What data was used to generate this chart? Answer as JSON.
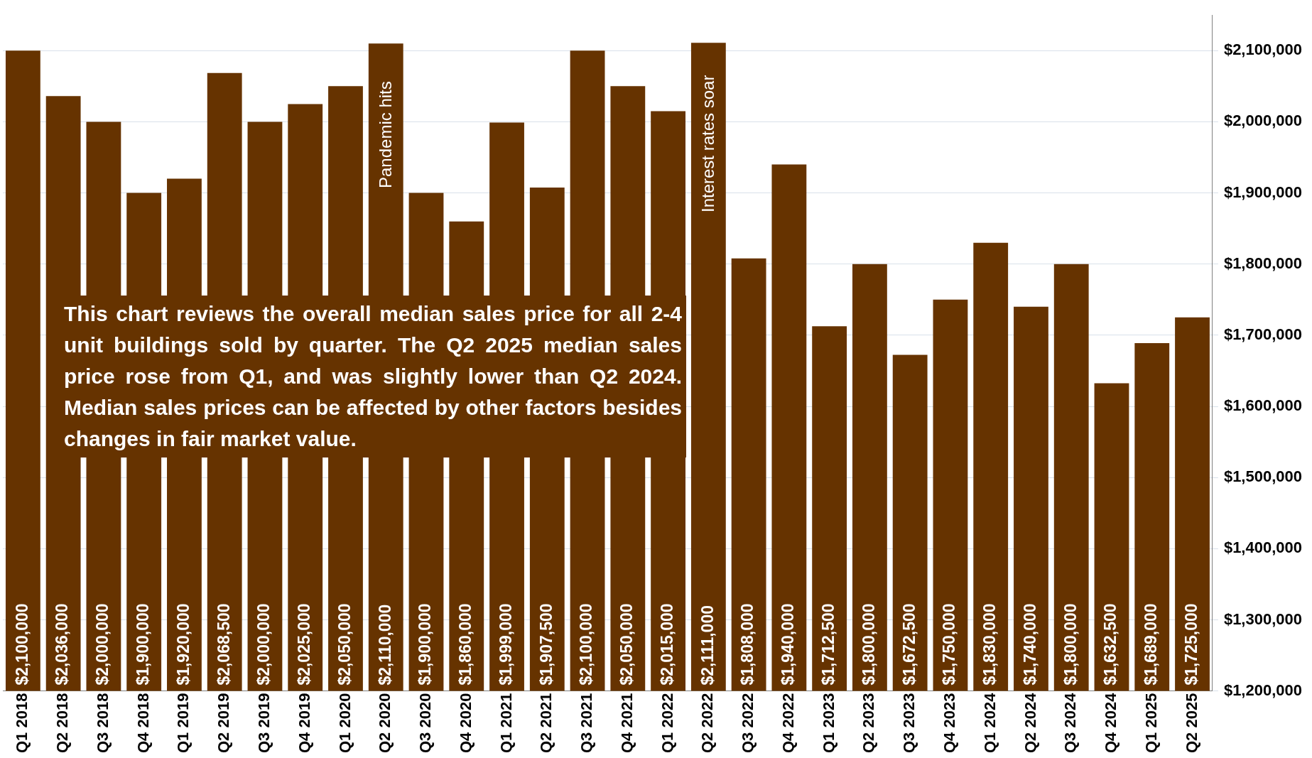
{
  "chart_data": {
    "type": "bar",
    "categories": [
      "Q1 2018",
      "Q2 2018",
      "Q3 2018",
      "Q4 2018",
      "Q1 2019",
      "Q2 2019",
      "Q3 2019",
      "Q4 2019",
      "Q1 2020",
      "Q2 2020",
      "Q3 2020",
      "Q4 2020",
      "Q1 2021",
      "Q2 2021",
      "Q3 2021",
      "Q4 2021",
      "Q1 2022",
      "Q2 2022",
      "Q3 2022",
      "Q4 2022",
      "Q1 2023",
      "Q2 2023",
      "Q3 2023",
      "Q4 2023",
      "Q1 2024",
      "Q2 2024",
      "Q3 2024",
      "Q4 2024",
      "Q1 2025",
      "Q2 2025"
    ],
    "values": [
      2100000,
      2036000,
      2000000,
      1900000,
      1920000,
      2068500,
      2000000,
      2025000,
      2050000,
      2110000,
      1900000,
      1860000,
      1999000,
      1907500,
      2100000,
      2050000,
      2015000,
      2111000,
      1808000,
      1940000,
      1712500,
      1800000,
      1672500,
      1750000,
      1830000,
      1740000,
      1800000,
      1632500,
      1689000,
      1725000
    ],
    "value_labels": [
      "$2,100,000",
      "$2,036,000",
      "$2,000,000",
      "$1,900,000",
      "$1,920,000",
      "$2,068,500",
      "$2,000,000",
      "$2,025,000",
      "$2,050,000",
      "$2,110,000",
      "$1,900,000",
      "$1,860,000",
      "$1,999,000",
      "$1,907,500",
      "$2,100,000",
      "$2,050,000",
      "$2,015,000",
      "$2,111,000",
      "$1,808,000",
      "$1,940,000",
      "$1,712,500",
      "$1,800,000",
      "$1,672,500",
      "$1,750,000",
      "$1,830,000",
      "$1,740,000",
      "$1,800,000",
      "$1,632,500",
      "$1,689,000",
      "$1,725,000"
    ],
    "color": "#663300",
    "ylim": [
      1200000,
      2150000
    ],
    "yticks": [
      {
        "value": 1200000,
        "label": "$1,200,000"
      },
      {
        "value": 1300000,
        "label": "$1,300,000"
      },
      {
        "value": 1400000,
        "label": "$1,400,000"
      },
      {
        "value": 1500000,
        "label": "$1,500,000"
      },
      {
        "value": 1600000,
        "label": "$1,600,000"
      },
      {
        "value": 1700000,
        "label": "$1,700,000"
      },
      {
        "value": 1800000,
        "label": "$1,800,000"
      },
      {
        "value": 1900000,
        "label": "$1,900,000"
      },
      {
        "value": 2000000,
        "label": "$2,000,000"
      },
      {
        "value": 2100000,
        "label": "$2,100,000"
      }
    ],
    "grid": "y",
    "legend": false,
    "annotations": [
      "Pandemic hits",
      "Interest rates soar",
      "This chart reviews the overall median sales price for all 2-4 unit buildings sold by quarter. The Q2 2025 median sales price rose from Q1, and was slightly lower than Q2 2024. Median sales prices can be affected by other factors besides changes in fair market value."
    ]
  }
}
